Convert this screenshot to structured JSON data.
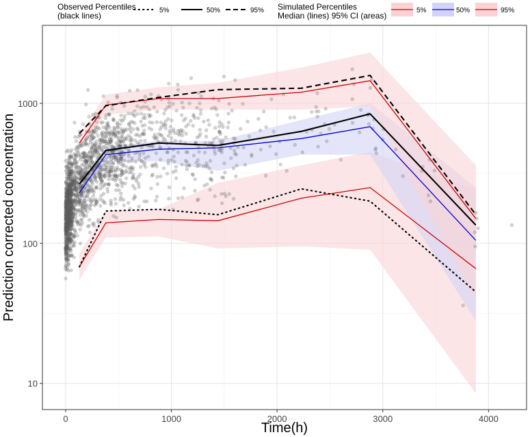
{
  "chart_data": {
    "type": "line",
    "xlabel": "Time(h)",
    "ylabel": "Prediction corrected concentration",
    "x_scale": "linear",
    "y_scale": "log10",
    "xlim": [
      -220,
      4360
    ],
    "ylim": [
      6.5,
      3600
    ],
    "x_ticks": [
      0,
      1000,
      2000,
      3000,
      4000
    ],
    "x_tick_labels": [
      "0",
      "1000",
      "2000",
      "3000",
      "4000"
    ],
    "x_minor_ticks": [
      500,
      1500,
      2500,
      3500
    ],
    "y_ticks": [
      10,
      100,
      1000
    ],
    "y_tick_labels": [
      "10",
      "100",
      "1000"
    ],
    "y_minor_ticks": [
      31.6,
      316
    ],
    "grid": true,
    "legend": {
      "observed": {
        "title_line1": "Observed Percentiles",
        "title_line2": "(black lines)",
        "keys": [
          {
            "label": "5%",
            "style": "dotted"
          },
          {
            "label": "50%",
            "style": "solid"
          },
          {
            "label": "95%",
            "style": "dashed"
          }
        ]
      },
      "simulated": {
        "title_line1": "Simulated Percentiles",
        "title_line2": "Median (lines) 95% CI (areas)",
        "keys": [
          {
            "label": "5%",
            "line_color": "#cc0000",
            "fill_color": "#f9d3d6"
          },
          {
            "label": "50%",
            "line_color": "#0000cc",
            "fill_color": "#d3d3f7"
          },
          {
            "label": "95%",
            "line_color": "#cc0000",
            "fill_color": "#f9d3d6"
          }
        ]
      }
    },
    "x": [
      130,
      380,
      880,
      1440,
      2230,
      2880,
      3880
    ],
    "observed_percentiles": [
      {
        "name": "Observed 5%",
        "style": "dotted",
        "values": [
          68,
          170,
          175,
          160,
          245,
          200,
          45
        ]
      },
      {
        "name": "Observed 50%",
        "style": "solid",
        "values": [
          265,
          460,
          520,
          500,
          630,
          840,
          135
        ]
      },
      {
        "name": "Observed 95%",
        "style": "dashed",
        "values": [
          610,
          960,
          1100,
          1250,
          1280,
          1580,
          160
        ]
      }
    ],
    "simulated_medians": [
      {
        "name": "Simulated 5%",
        "color": "#cc0000",
        "values": [
          68,
          140,
          148,
          145,
          210,
          250,
          66
        ]
      },
      {
        "name": "Simulated 50%",
        "color": "#0000cc",
        "values": [
          230,
          430,
          470,
          480,
          560,
          680,
          105
        ]
      },
      {
        "name": "Simulated 95%",
        "color": "#cc0000",
        "values": [
          520,
          970,
          1080,
          1080,
          1200,
          1450,
          150
        ]
      }
    ],
    "simulated_ci": [
      {
        "name": "Simulated 5% CI",
        "color": "#f9d3d6",
        "lower": [
          55,
          110,
          112,
          92,
          95,
          90,
          8.5
        ],
        "upper": [
          85,
          170,
          175,
          270,
          360,
          450,
          240
        ]
      },
      {
        "name": "Simulated 50% CI",
        "color": "#d3d3f7",
        "lower": [
          210,
          380,
          385,
          330,
          430,
          430,
          28
        ],
        "upper": [
          260,
          490,
          540,
          540,
          760,
          1000,
          250
        ]
      },
      {
        "name": "Simulated 95% CI",
        "color": "#f9d3d6",
        "lower": [
          460,
          830,
          900,
          900,
          900,
          950,
          40
        ],
        "upper": [
          590,
          1150,
          1300,
          1400,
          1800,
          2300,
          360
        ]
      }
    ],
    "observations_description": "About 2000 grey semi-transparent points, dense at 0-500 h (about 20 to 3000), sparser toward 3000 h, plus isolated points near 3900 h and 4220 h"
  }
}
